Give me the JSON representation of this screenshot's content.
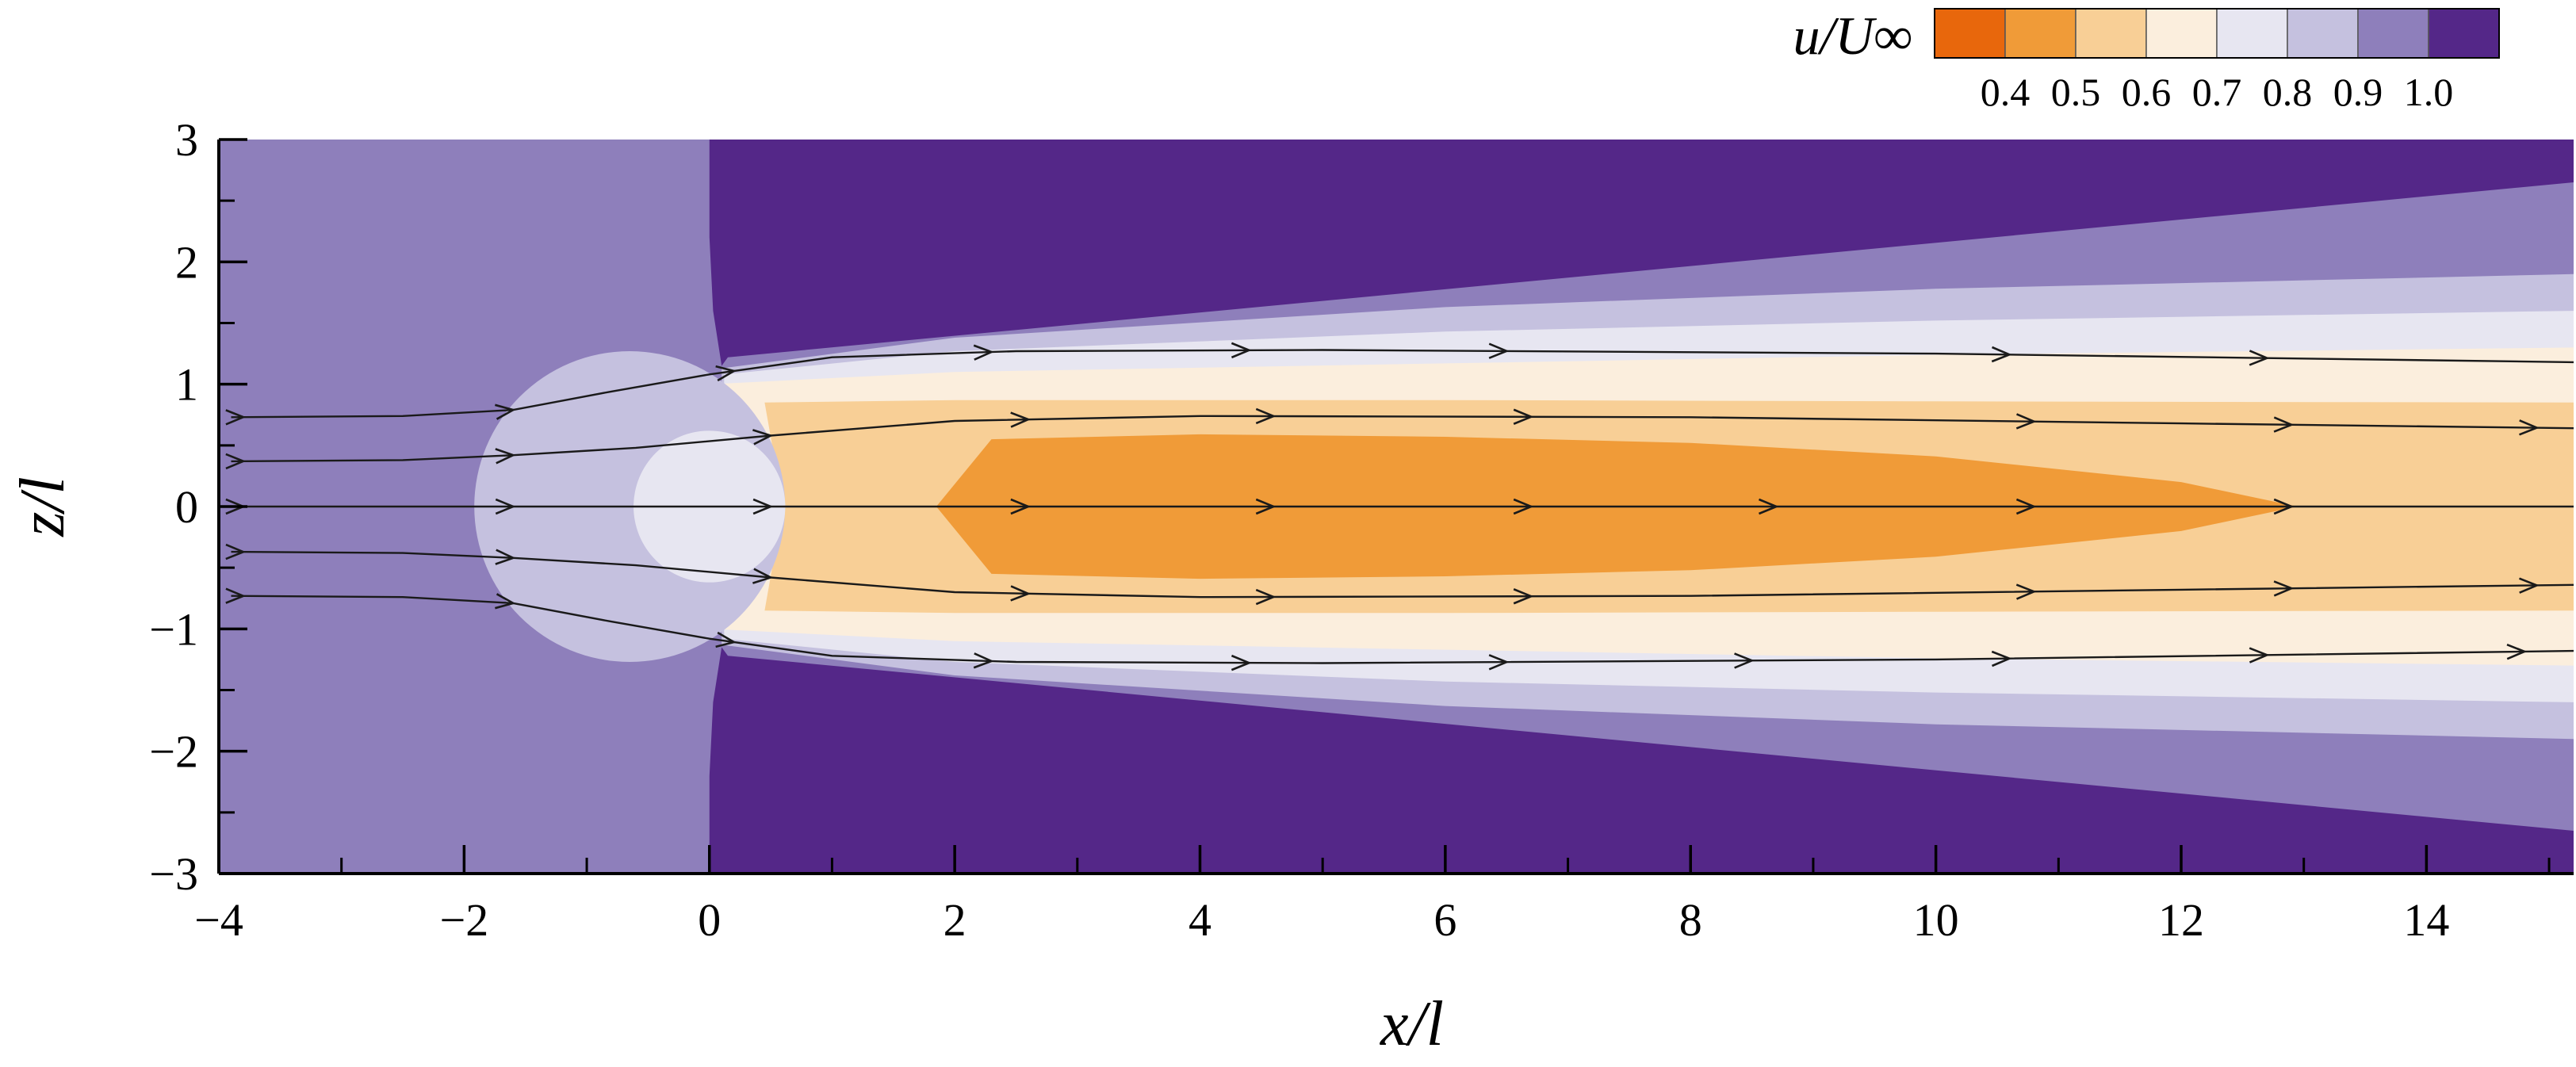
{
  "chart_data": {
    "type": "contour",
    "xlabel": "x/l",
    "ylabel": "z/l",
    "xlim": [
      -4,
      15.2
    ],
    "ylim": [
      -3,
      3
    ],
    "xticks": [
      -4,
      -2,
      0,
      2,
      4,
      6,
      8,
      10,
      12,
      14
    ],
    "xtick_labels": [
      "−4",
      "−2",
      "0",
      "2",
      "4",
      "6",
      "8",
      "10",
      "12",
      "14"
    ],
    "yticks": [
      -3,
      -2,
      -1,
      0,
      1,
      2,
      3
    ],
    "ytick_labels": [
      "−3",
      "−2",
      "−1",
      "0",
      "1",
      "2",
      "3"
    ],
    "colorbar": {
      "title": "u/U∞",
      "placement": "top-right",
      "levels": [
        0.4,
        0.5,
        0.6,
        0.7,
        0.8,
        0.9,
        1.0
      ],
      "level_labels": [
        "0.4",
        "0.5",
        "0.6",
        "0.7",
        "0.8",
        "0.9",
        "1.0"
      ],
      "colors": [
        "#e8670c",
        "#f09b38",
        "#f8cf96",
        "#fbeedd",
        "#e7e6f1",
        "#c5c1df",
        "#8e7fbb",
        "#542788"
      ]
    },
    "regions": [
      {
        "level_index": 7,
        "description": "outer free stream",
        "polygon": [
          [
            0,
            3
          ],
          [
            15.2,
            3
          ],
          [
            15.2,
            2.65
          ],
          [
            0.15,
            1.22
          ],
          [
            0.1,
            1.15
          ],
          [
            0.03,
            1.6
          ],
          [
            0,
            2.2
          ],
          [
            0,
            3
          ]
        ]
      },
      {
        "level_index": 7,
        "description": "outer free stream",
        "polygon": [
          [
            0,
            -3
          ],
          [
            15.2,
            -3
          ],
          [
            15.2,
            -2.65
          ],
          [
            0.15,
            -1.22
          ],
          [
            0.1,
            -1.15
          ],
          [
            0.03,
            -1.6
          ],
          [
            0,
            -2.2
          ],
          [
            0,
            -3
          ]
        ]
      },
      {
        "level_index": 5,
        "description": "wake band",
        "polygon": [
          [
            0.1,
            1.13
          ],
          [
            2,
            1.38
          ],
          [
            6,
            1.63
          ],
          [
            10,
            1.78
          ],
          [
            15.2,
            1.9
          ],
          [
            15.2,
            -1.9
          ],
          [
            10,
            -1.78
          ],
          [
            6,
            -1.63
          ],
          [
            2,
            -1.38
          ],
          [
            0.1,
            -1.13
          ]
        ]
      },
      {
        "level_index": 4,
        "description": "wake band",
        "polygon": [
          [
            0.12,
            1.08
          ],
          [
            2,
            1.27
          ],
          [
            6,
            1.43
          ],
          [
            10,
            1.52
          ],
          [
            15.2,
            1.6
          ],
          [
            15.2,
            -1.6
          ],
          [
            10,
            -1.52
          ],
          [
            6,
            -1.43
          ],
          [
            2,
            -1.27
          ],
          [
            0.12,
            -1.08
          ]
        ]
      },
      {
        "level_index": 3,
        "description": "wake band",
        "polygon": [
          [
            0,
            1.0
          ],
          [
            2,
            1.1
          ],
          [
            6,
            1.17
          ],
          [
            10,
            1.24
          ],
          [
            15.2,
            1.3
          ],
          [
            15.2,
            -1.3
          ],
          [
            10,
            -1.24
          ],
          [
            6,
            -1.17
          ],
          [
            2,
            -1.1
          ],
          [
            0,
            -1.0
          ]
        ]
      },
      {
        "level_index": 2,
        "description": "wake band",
        "polygon": [
          [
            0.45,
            0.85
          ],
          [
            2,
            0.87
          ],
          [
            6,
            0.87
          ],
          [
            10,
            0.86
          ],
          [
            15.2,
            0.85
          ],
          [
            15.2,
            -0.85
          ],
          [
            10,
            -0.86
          ],
          [
            6,
            -0.87
          ],
          [
            2,
            -0.87
          ],
          [
            0.45,
            -0.85
          ],
          [
            0.6,
            0.0
          ]
        ]
      },
      {
        "level_index": 1,
        "description": "wake core",
        "polygon": [
          [
            2.3,
            0.55
          ],
          [
            4,
            0.59
          ],
          [
            6,
            0.57
          ],
          [
            8,
            0.52
          ],
          [
            10,
            0.41
          ],
          [
            12,
            0.2
          ],
          [
            12.95,
            0.0
          ],
          [
            12,
            -0.2
          ],
          [
            10,
            -0.41
          ],
          [
            8,
            -0.52
          ],
          [
            6,
            -0.57
          ],
          [
            4,
            -0.59
          ],
          [
            2.3,
            -0.55
          ],
          [
            1.85,
            0.0
          ]
        ]
      }
    ],
    "circles": [
      {
        "center": [
          -0.65,
          0.0
        ],
        "radius": 1.27,
        "level_index": 5
      },
      {
        "center": [
          0.0,
          0.0
        ],
        "radius": 0.62,
        "level_index": 4
      }
    ],
    "streamlines": [
      {
        "points": [
          [
            -3.9,
            0.73
          ],
          [
            -2.5,
            0.74
          ],
          [
            -1.6,
            0.79
          ],
          [
            -0.8,
            0.94
          ],
          [
            0.0,
            1.08
          ],
          [
            1.0,
            1.22
          ],
          [
            2.5,
            1.27
          ],
          [
            5.0,
            1.28
          ],
          [
            10.0,
            1.25
          ],
          [
            15.2,
            1.18
          ]
        ],
        "arrows_at_x": [
          -3.8,
          -1.6,
          0.2,
          2.3,
          4.4,
          6.5,
          10.6,
          12.7
        ]
      },
      {
        "points": [
          [
            -3.9,
            0.37
          ],
          [
            -2.5,
            0.38
          ],
          [
            -1.6,
            0.42
          ],
          [
            -0.6,
            0.48
          ],
          [
            0.5,
            0.58
          ],
          [
            2.0,
            0.7
          ],
          [
            4.0,
            0.74
          ],
          [
            8.0,
            0.73
          ],
          [
            12.0,
            0.68
          ],
          [
            15.2,
            0.64
          ]
        ],
        "arrows_at_x": [
          -3.8,
          -1.6,
          0.5,
          2.6,
          4.6,
          6.7,
          10.8,
          12.9,
          14.9
        ]
      },
      {
        "points": [
          [
            -4.0,
            0.0
          ],
          [
            15.2,
            0.0
          ]
        ],
        "arrows_at_x": [
          -3.8,
          -1.6,
          0.5,
          2.6,
          4.6,
          6.7,
          8.7,
          10.8,
          12.9
        ]
      },
      {
        "points": [
          [
            -3.9,
            -0.37
          ],
          [
            -2.5,
            -0.38
          ],
          [
            -1.6,
            -0.42
          ],
          [
            -0.6,
            -0.48
          ],
          [
            0.5,
            -0.58
          ],
          [
            2.0,
            -0.7
          ],
          [
            4.0,
            -0.74
          ],
          [
            8.0,
            -0.73
          ],
          [
            12.0,
            -0.68
          ],
          [
            15.2,
            -0.64
          ]
        ],
        "arrows_at_x": [
          -3.8,
          -1.6,
          0.5,
          2.6,
          4.6,
          6.7,
          10.8,
          12.9,
          14.9
        ]
      },
      {
        "points": [
          [
            -3.9,
            -0.73
          ],
          [
            -2.5,
            -0.74
          ],
          [
            -1.6,
            -0.79
          ],
          [
            -0.8,
            -0.94
          ],
          [
            0.0,
            -1.08
          ],
          [
            1.0,
            -1.22
          ],
          [
            2.5,
            -1.27
          ],
          [
            5.0,
            -1.28
          ],
          [
            10.0,
            -1.25
          ],
          [
            15.2,
            -1.18
          ]
        ],
        "arrows_at_x": [
          -3.8,
          -1.6,
          0.2,
          2.3,
          4.4,
          6.5,
          8.5,
          10.6,
          12.7,
          14.8
        ]
      }
    ]
  }
}
